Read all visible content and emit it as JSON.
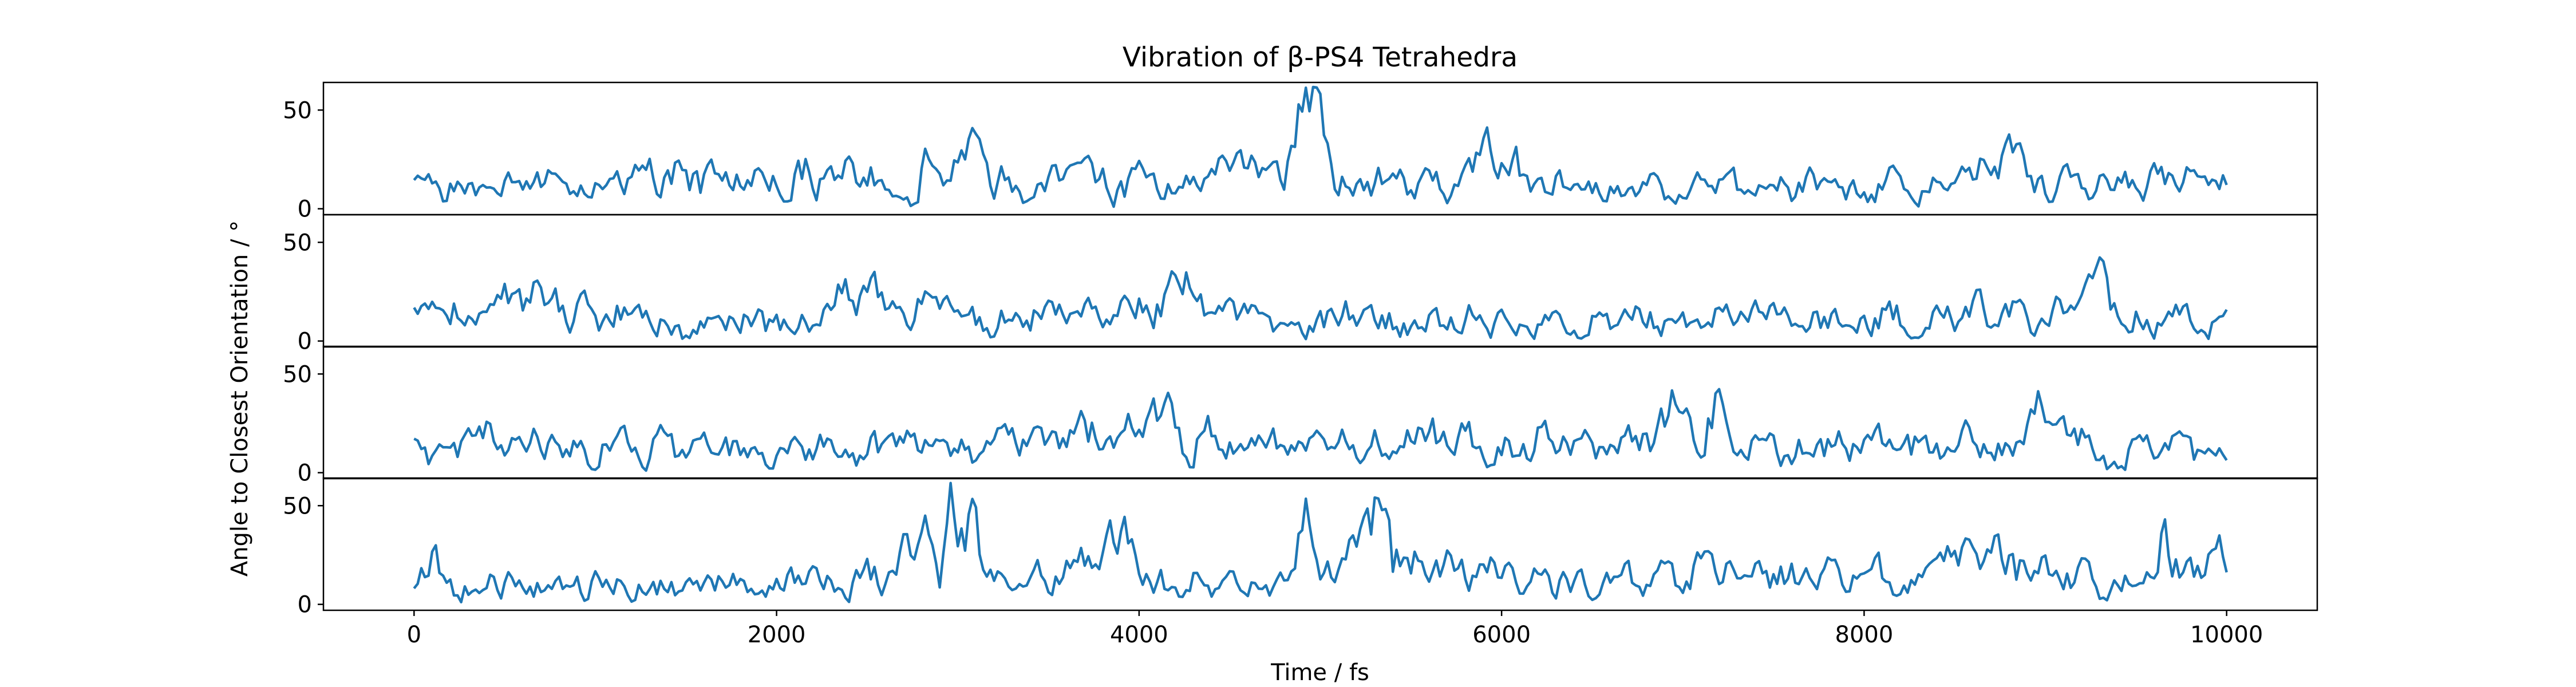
{
  "chart_data": {
    "type": "line",
    "title": "Vibration of β-PS4 Tetrahedra",
    "xlabel": "Time / fs",
    "ylabel": "Angle to Closest Orientation / °",
    "xlim": [
      -500,
      10500
    ],
    "ylim": [
      -3,
      64
    ],
    "x_ticks": [
      0,
      2000,
      4000,
      6000,
      8000,
      10000
    ],
    "y_ticks": [
      0,
      50
    ],
    "grid": false,
    "legend": "none",
    "line_color": "#1f77b4",
    "sample_step_fs": 20,
    "series": [
      {
        "baseline": 12,
        "keypoints": [
          [
            0,
            12
          ],
          [
            400,
            10
          ],
          [
            1000,
            12
          ],
          [
            1400,
            18
          ],
          [
            1800,
            14
          ],
          [
            2000,
            14
          ],
          [
            2200,
            20
          ],
          [
            2400,
            15
          ],
          [
            2700,
            18
          ],
          [
            2900,
            22
          ],
          [
            3100,
            22
          ],
          [
            3400,
            12
          ],
          [
            3800,
            14
          ],
          [
            4200,
            12
          ],
          [
            4400,
            16
          ],
          [
            4550,
            28
          ],
          [
            4700,
            15
          ],
          [
            4800,
            10
          ],
          [
            4850,
            35
          ],
          [
            4900,
            52
          ],
          [
            4950,
            56
          ],
          [
            4980,
            58
          ],
          [
            5020,
            30
          ],
          [
            5080,
            12
          ],
          [
            5300,
            14
          ],
          [
            5600,
            14
          ],
          [
            5800,
            15
          ],
          [
            6000,
            34
          ],
          [
            6060,
            25
          ],
          [
            6150,
            12
          ],
          [
            6500,
            10
          ],
          [
            7000,
            10
          ],
          [
            7500,
            10
          ],
          [
            8000,
            11
          ],
          [
            8200,
            14
          ],
          [
            8600,
            15
          ],
          [
            8800,
            25
          ],
          [
            9000,
            12
          ],
          [
            9400,
            14
          ],
          [
            9600,
            15
          ],
          [
            10000,
            13
          ]
        ]
      },
      {
        "baseline": 11,
        "keypoints": [
          [
            0,
            12
          ],
          [
            150,
            15
          ],
          [
            400,
            17
          ],
          [
            800,
            20
          ],
          [
            1000,
            14
          ],
          [
            1400,
            10
          ],
          [
            2000,
            10
          ],
          [
            2300,
            15
          ],
          [
            2400,
            25
          ],
          [
            2500,
            35
          ],
          [
            2550,
            40
          ],
          [
            2600,
            18
          ],
          [
            3000,
            12
          ],
          [
            3400,
            14
          ],
          [
            3800,
            10
          ],
          [
            4200,
            20
          ],
          [
            4250,
            35
          ],
          [
            4300,
            18
          ],
          [
            4500,
            14
          ],
          [
            4700,
            10
          ],
          [
            5000,
            12
          ],
          [
            5400,
            11
          ],
          [
            6000,
            11
          ],
          [
            6500,
            10
          ],
          [
            7000,
            12
          ],
          [
            7400,
            13
          ],
          [
            7800,
            11
          ],
          [
            8200,
            12
          ],
          [
            8600,
            14
          ],
          [
            9000,
            15
          ],
          [
            9150,
            22
          ],
          [
            9250,
            30
          ],
          [
            9300,
            40
          ],
          [
            9350,
            15
          ],
          [
            9600,
            10
          ],
          [
            10000,
            9
          ]
        ]
      },
      {
        "baseline": 12,
        "keypoints": [
          [
            0,
            10
          ],
          [
            200,
            10
          ],
          [
            350,
            25
          ],
          [
            420,
            18
          ],
          [
            600,
            12
          ],
          [
            800,
            15
          ],
          [
            1000,
            12
          ],
          [
            1400,
            18
          ],
          [
            1800,
            10
          ],
          [
            2200,
            10
          ],
          [
            2600,
            13
          ],
          [
            3000,
            12
          ],
          [
            3600,
            14
          ],
          [
            3700,
            28
          ],
          [
            3800,
            20
          ],
          [
            4000,
            18
          ],
          [
            4150,
            32
          ],
          [
            4250,
            18
          ],
          [
            4500,
            16
          ],
          [
            4800,
            18
          ],
          [
            5000,
            15
          ],
          [
            5300,
            14
          ],
          [
            5500,
            22
          ],
          [
            5800,
            18
          ],
          [
            6200,
            16
          ],
          [
            6500,
            14
          ],
          [
            6800,
            18
          ],
          [
            6900,
            22
          ],
          [
            6980,
            44
          ],
          [
            7000,
            54
          ],
          [
            7030,
            40
          ],
          [
            7080,
            15
          ],
          [
            7200,
            34
          ],
          [
            7300,
            15
          ],
          [
            7600,
            12
          ],
          [
            8000,
            12
          ],
          [
            8400,
            14
          ],
          [
            8800,
            16
          ],
          [
            8900,
            22
          ],
          [
            8980,
            36
          ],
          [
            9050,
            18
          ],
          [
            9400,
            12
          ],
          [
            10000,
            8
          ]
        ]
      },
      {
        "baseline": 12,
        "keypoints": [
          [
            0,
            10
          ],
          [
            100,
            20
          ],
          [
            200,
            12
          ],
          [
            600,
            10
          ],
          [
            1000,
            10
          ],
          [
            1400,
            11
          ],
          [
            2000,
            11
          ],
          [
            2400,
            12
          ],
          [
            2600,
            18
          ],
          [
            2700,
            30
          ],
          [
            2850,
            35
          ],
          [
            2900,
            15
          ],
          [
            2960,
            50
          ],
          [
            3000,
            55
          ],
          [
            3080,
            48
          ],
          [
            3150,
            12
          ],
          [
            3400,
            10
          ],
          [
            3600,
            22
          ],
          [
            3800,
            25
          ],
          [
            3950,
            30
          ],
          [
            4050,
            12
          ],
          [
            4400,
            10
          ],
          [
            4800,
            12
          ],
          [
            4880,
            38
          ],
          [
            4950,
            48
          ],
          [
            5000,
            15
          ],
          [
            5100,
            18
          ],
          [
            5200,
            30
          ],
          [
            5300,
            48
          ],
          [
            5350,
            52
          ],
          [
            5400,
            22
          ],
          [
            5600,
            18
          ],
          [
            5800,
            16
          ],
          [
            6200,
            12
          ],
          [
            6600,
            12
          ],
          [
            7000,
            12
          ],
          [
            7100,
            20
          ],
          [
            7500,
            14
          ],
          [
            8000,
            14
          ],
          [
            8400,
            16
          ],
          [
            8600,
            22
          ],
          [
            8800,
            26
          ],
          [
            9000,
            16
          ],
          [
            9200,
            14
          ],
          [
            9600,
            15
          ],
          [
            9650,
            38
          ],
          [
            9700,
            15
          ],
          [
            10000,
            28
          ]
        ]
      }
    ]
  }
}
